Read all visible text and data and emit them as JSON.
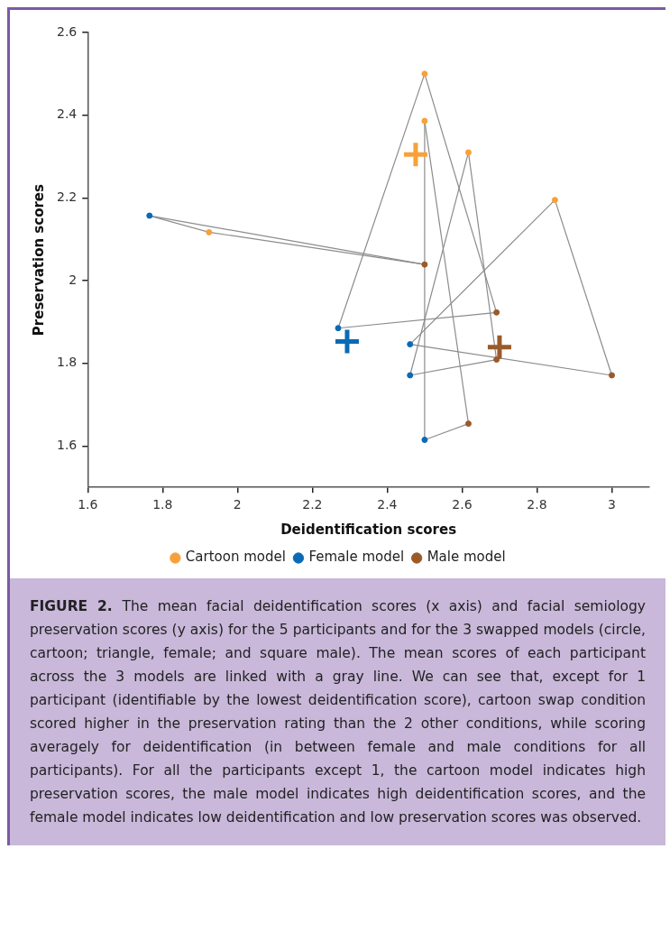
{
  "chart_data": {
    "type": "scatter",
    "xlabel": "Deidentification scores",
    "ylabel": "Preservation scores",
    "xlim": [
      1.6,
      3.1
    ],
    "ylim": [
      1.5,
      2.6
    ],
    "xticks": [
      1.6,
      1.8,
      2,
      2.2,
      2.4,
      2.6,
      2.8,
      3
    ],
    "yticks": [
      1.6,
      1.8,
      2,
      2.2,
      2.4,
      2.6
    ],
    "grid": false,
    "legend": "bottom",
    "marker": "circle",
    "series": [
      {
        "type": "line",
        "color": "#8c8c8c",
        "marker": "none",
        "x": [
          1.765,
          1.924,
          2.5
        ],
        "values": [
          2.157,
          2.117,
          2.039
        ]
      },
      {
        "type": "line",
        "color": "#8c8c8c",
        "marker": "none",
        "x": [
          2.5,
          1.765
        ],
        "values": [
          2.039,
          2.157
        ]
      },
      {
        "type": "line",
        "color": "#8c8c8c",
        "marker": "none",
        "x": [
          2.5,
          2.269,
          2.692
        ],
        "values": [
          2.5,
          1.885,
          1.923
        ]
      },
      {
        "type": "line",
        "color": "#8c8c8c",
        "marker": "none",
        "x": [
          2.692,
          2.5
        ],
        "values": [
          1.923,
          2.5
        ]
      },
      {
        "type": "line",
        "color": "#8c8c8c",
        "marker": "none",
        "x": [
          2.5,
          2.5,
          2.617
        ],
        "values": [
          2.386,
          1.615,
          1.654
        ]
      },
      {
        "type": "line",
        "color": "#8c8c8c",
        "marker": "none",
        "x": [
          2.617,
          2.5
        ],
        "values": [
          1.654,
          2.386
        ]
      },
      {
        "type": "line",
        "color": "#8c8c8c",
        "marker": "none",
        "x": [
          2.617,
          2.461,
          2.692
        ],
        "values": [
          2.31,
          1.771,
          1.809
        ]
      },
      {
        "type": "line",
        "color": "#8c8c8c",
        "marker": "none",
        "x": [
          2.692,
          2.617
        ],
        "values": [
          1.809,
          2.31
        ]
      },
      {
        "type": "line",
        "color": "#8c8c8c",
        "marker": "none",
        "x": [
          2.848,
          2.461,
          3.0
        ],
        "values": [
          2.195,
          1.846,
          1.771
        ]
      },
      {
        "type": "line",
        "color": "#8c8c8c",
        "marker": "none",
        "x": [
          3.0,
          2.848
        ],
        "values": [
          1.771,
          2.195
        ]
      },
      {
        "type": "scatter",
        "name": "Cartoon model",
        "color": "#f7a13a",
        "x": [
          2.5,
          2.5,
          2.617,
          2.848,
          1.924
        ],
        "values": [
          2.5,
          2.386,
          2.31,
          2.195,
          2.117
        ]
      },
      {
        "type": "scatter",
        "name": "Female model",
        "color": "#0b6ab5",
        "x": [
          1.765,
          2.269,
          2.461,
          2.461,
          2.5
        ],
        "values": [
          2.157,
          1.885,
          1.846,
          1.771,
          1.615
        ]
      },
      {
        "type": "scatter",
        "name": "Male model",
        "color": "#9b5a2a",
        "x": [
          2.5,
          2.692,
          2.692,
          3.0,
          2.617
        ],
        "values": [
          2.039,
          1.923,
          1.809,
          1.771,
          1.654
        ]
      },
      {
        "type": "scatter",
        "color": "#f7a13a",
        "marker": "cross",
        "x": [
          2.476
        ],
        "values": [
          2.305
        ]
      },
      {
        "type": "scatter",
        "color": "#0b6ab5",
        "marker": "cross",
        "x": [
          2.293
        ],
        "values": [
          1.853
        ]
      },
      {
        "type": "scatter",
        "color": "#9b5a2a",
        "marker": "cross",
        "x": [
          2.7
        ],
        "values": [
          1.839
        ]
      }
    ],
    "annotations": [
      "FIGURE 2.",
      "The mean facial deidentification scores (x axis) and facial semiology preservation scores (y axis) for the 5 participants and for the 3 swapped models (circle, cartoon; triangle, female; and square male). The mean scores of each participant across the 3 models are linked with a gray line. We can see that, except for 1 participant (identifiable by the lowest deidentification score), cartoon swap condition scored higher in the preservation rating than the 2 other conditions, while scoring averagely for deidentification (in between female and male conditions for all participants). For all the participants except 1, the cartoon model indicates high preservation scores, the male model indicates high deidentification scores, and the female model indicates low deidentification and low preservation scores was observed."
    ]
  }
}
